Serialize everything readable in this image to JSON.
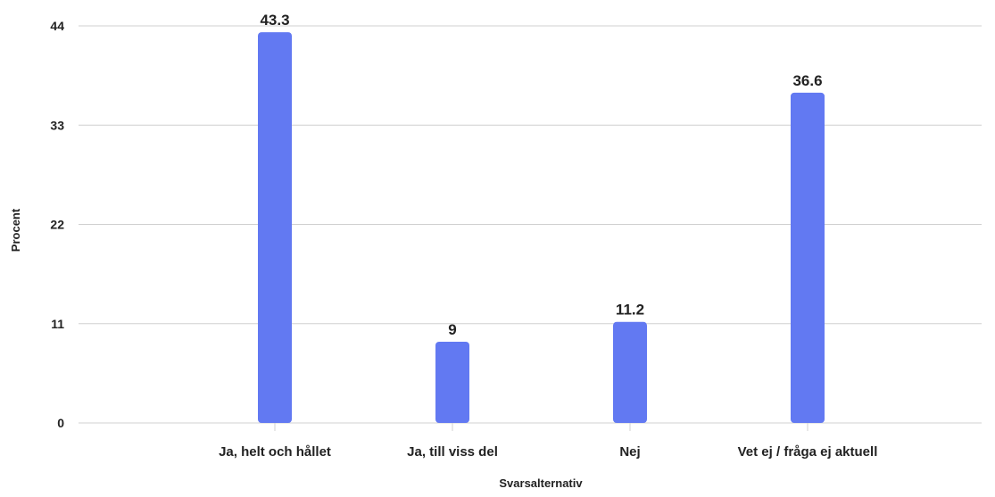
{
  "chart_data": {
    "type": "bar",
    "categories": [
      "Ja, helt och hållet",
      "Ja, till viss del",
      "Nej",
      "Vet ej / fråga ej aktuell"
    ],
    "values": [
      43.3,
      9,
      11.2,
      36.6
    ],
    "data_labels": [
      "43.3",
      "9",
      "11.2",
      "36.6"
    ],
    "xlabel": "Svarsalternativ",
    "ylabel": "Procent",
    "ylim": [
      0,
      44
    ],
    "yticks": [
      0,
      11,
      22,
      33,
      44
    ],
    "grid": true,
    "bar_color": "#6279f2"
  }
}
